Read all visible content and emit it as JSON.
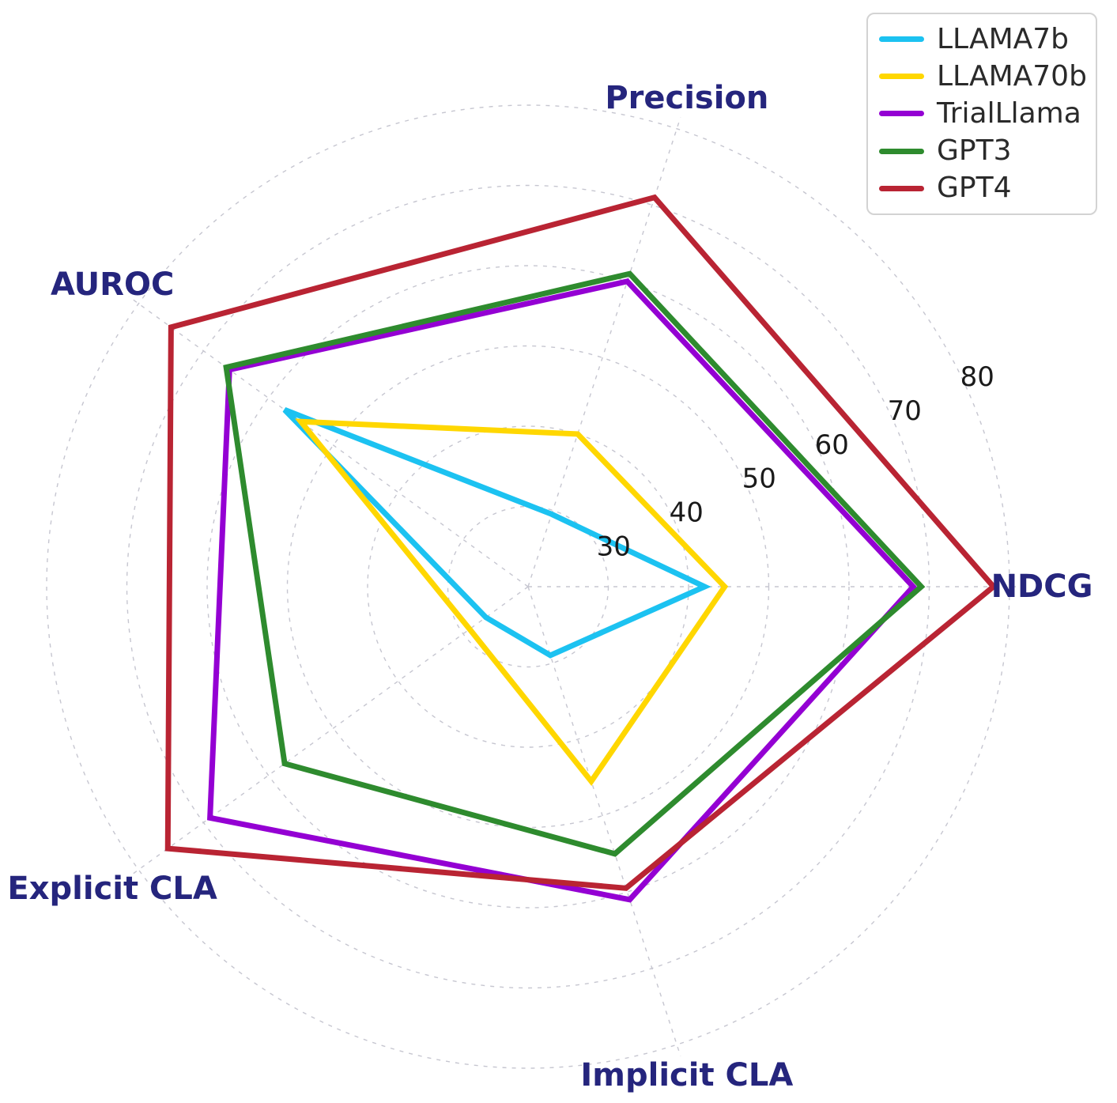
{
  "figure": {
    "background_color": "#ffffff",
    "grid_color": "#c6c6d0",
    "axis_label_color": "#25257d",
    "tick_label_color": "#1a1a1a"
  },
  "chart_data": {
    "type": "radar",
    "title": "",
    "categories": [
      "Precision",
      "NDCG",
      "Implicit CLA",
      "Explicit CLA",
      "AUROC"
    ],
    "axis_angles_deg": [
      72,
      0,
      288,
      216,
      144
    ],
    "series": [
      {
        "name": "LLAMA7b",
        "color": "#1cc2f1",
        "values": [
          29.5,
          42,
          29,
          26.5,
          57.5
        ]
      },
      {
        "name": "LLAMA70b",
        "color": "#ffd700",
        "values": [
          40,
          44.5,
          45.5,
          29,
          55
        ]
      },
      {
        "name": "TrialLlama",
        "color": "#9400d3",
        "values": [
          60,
          68,
          61,
          69,
          66
        ]
      },
      {
        "name": "GPT3",
        "color": "#2e8b2e",
        "values": [
          61,
          69,
          55,
          57.5,
          66.5
        ]
      },
      {
        "name": "GPT4",
        "color": "#b92433",
        "values": [
          71,
          78,
          59.5,
          75.5,
          75
        ]
      }
    ],
    "radial_axis": {
      "min": 20,
      "max": 81.5,
      "ticks": [
        30,
        40,
        50,
        60,
        70,
        80
      ],
      "tick_label_angle_deg": 25
    },
    "grid": {
      "show": true,
      "style": "dashed"
    },
    "legend": {
      "position": "top-right",
      "entries": [
        "LLAMA7b",
        "LLAMA70b",
        "TrialLlama",
        "GPT3",
        "GPT4"
      ]
    }
  }
}
